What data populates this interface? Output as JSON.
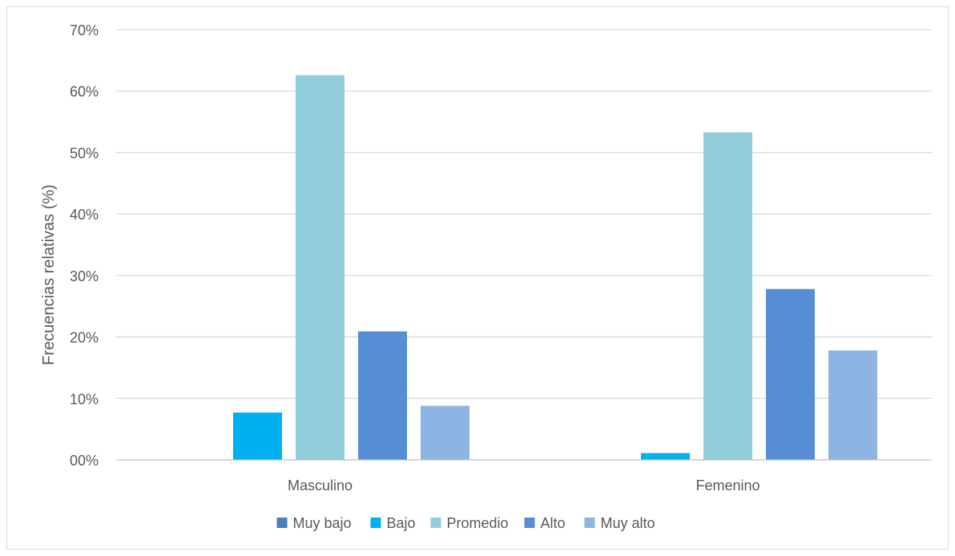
{
  "chart_data": {
    "type": "bar",
    "categories": [
      "Masculino",
      "Femenino"
    ],
    "series": [
      {
        "name": "Muy bajo",
        "values": [
          0,
          0
        ],
        "color": "#4a7ebb"
      },
      {
        "name": "Bajo",
        "values": [
          7.7,
          1.1
        ],
        "color": "#00b0f0"
      },
      {
        "name": "Promedio",
        "values": [
          62.6,
          53.3
        ],
        "color": "#92cddc"
      },
      {
        "name": "Alto",
        "values": [
          20.9,
          27.8
        ],
        "color": "#558ed5"
      },
      {
        "name": "Muy alto",
        "values": [
          8.8,
          17.8
        ],
        "color": "#8eb4e3"
      }
    ],
    "title": "",
    "xlabel": "",
    "ylabel": "Frecuencias relativas (%)",
    "ylim": [
      0,
      70
    ],
    "yticks": [
      0,
      10,
      20,
      30,
      40,
      50,
      60,
      70
    ],
    "ytick_labels": [
      "00%",
      "10%",
      "20%",
      "30%",
      "40%",
      "50%",
      "60%",
      "70%"
    ],
    "grid": true,
    "legend_position": "bottom",
    "gridline_color": "#d9d9d9",
    "axis_line_color": "#bfbfbf"
  }
}
